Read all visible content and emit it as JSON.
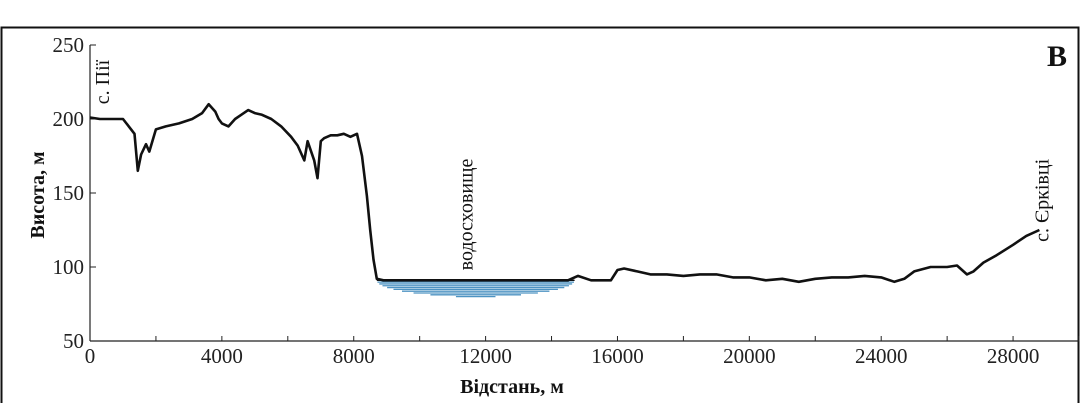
{
  "chart_data": {
    "type": "line",
    "title": "",
    "panel_label": "B",
    "xlabel": "Відстань, м",
    "ylabel": "Висота, м",
    "xlim": [
      0,
      30000
    ],
    "ylim": [
      50,
      250
    ],
    "x_ticks": [
      0,
      4000,
      8000,
      12000,
      16000,
      20000,
      24000,
      28000
    ],
    "y_ticks": [
      50,
      100,
      150,
      200,
      250
    ],
    "grid": false,
    "series": [
      {
        "x": [
          0,
          300,
          1000,
          1350,
          1450,
          1550,
          1700,
          1800,
          2000,
          2300,
          2700,
          3100,
          3400,
          3600,
          3800,
          3900,
          4000,
          4200,
          4400,
          4600,
          4800,
          5000,
          5200,
          5500,
          5800,
          6100,
          6300,
          6500,
          6600,
          6800,
          6900,
          7000,
          7100,
          7300,
          7500,
          7700,
          7900,
          8100,
          8250,
          8400,
          8500,
          8600,
          8700,
          8900,
          9500,
          10500,
          11500,
          12500,
          13500,
          14500,
          14800,
          15200,
          15800,
          16000,
          16200,
          16600,
          17000,
          17500,
          18000,
          18500,
          19000,
          19500,
          20000,
          20500,
          21000,
          21500,
          22000,
          22500,
          23000,
          23500,
          24000,
          24400,
          24700,
          25000,
          25500,
          26000,
          26300,
          26600,
          26800,
          27100,
          27500,
          28000,
          28400,
          28800
        ],
        "values": [
          201,
          200,
          200,
          190,
          165,
          176,
          183,
          178,
          193,
          195,
          197,
          200,
          204,
          210,
          205,
          200,
          197,
          195,
          200,
          203,
          206,
          204,
          203,
          200,
          195,
          188,
          182,
          172,
          185,
          172,
          160,
          185,
          187,
          189,
          189,
          190,
          188,
          190,
          175,
          148,
          125,
          105,
          92,
          91,
          91,
          91,
          91,
          91,
          91,
          91,
          94,
          91,
          91,
          98,
          99,
          97,
          95,
          95,
          94,
          95,
          95,
          93,
          93,
          91,
          92,
          90,
          92,
          93,
          93,
          94,
          93,
          90,
          92,
          97,
          100,
          100,
          101,
          95,
          97,
          103,
          108,
          115,
          121,
          125
        ]
      }
    ],
    "reservoir": {
      "label": "водосховище",
      "x_range": [
        8700,
        14700
      ],
      "surface": 91,
      "bottom": 80
    },
    "annotations": [
      {
        "text": "с. Пії",
        "x": 400,
        "y": 225,
        "vertical": true
      },
      {
        "text": "с. Єрківці",
        "x": 28900,
        "y": 145,
        "vertical": true
      }
    ]
  }
}
